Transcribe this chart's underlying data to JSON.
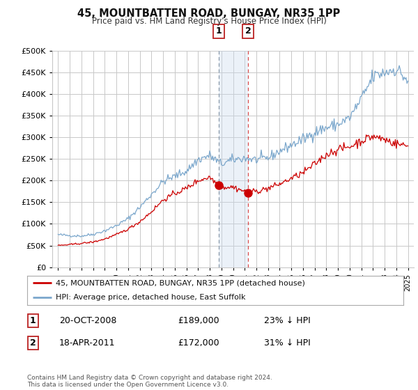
{
  "title": "45, MOUNTBATTEN ROAD, BUNGAY, NR35 1PP",
  "subtitle": "Price paid vs. HM Land Registry's House Price Index (HPI)",
  "legend_line1": "45, MOUNTBATTEN ROAD, BUNGAY, NR35 1PP (detached house)",
  "legend_line2": "HPI: Average price, detached house, East Suffolk",
  "sale1_date": "20-OCT-2008",
  "sale1_price": "£189,000",
  "sale1_hpi": "23% ↓ HPI",
  "sale2_date": "18-APR-2011",
  "sale2_price": "£172,000",
  "sale2_hpi": "31% ↓ HPI",
  "footer": "Contains HM Land Registry data © Crown copyright and database right 2024.\nThis data is licensed under the Open Government Licence v3.0.",
  "sale1_year": 2008.79,
  "sale2_year": 2011.29,
  "sale1_value": 189000,
  "sale2_value": 172000,
  "red_color": "#cc0000",
  "blue_color": "#7ba7cc",
  "shade_color": "#c8d8ec",
  "background_color": "#ffffff",
  "grid_color": "#c8c8c8",
  "ylim": [
    0,
    500000
  ],
  "xlim_start": 1994.5,
  "xlim_end": 2025.5,
  "hpi_annual": [
    1995,
    1996,
    1997,
    1998,
    1999,
    2000,
    2001,
    2002,
    2003,
    2004,
    2005,
    2006,
    2007,
    2008,
    2009,
    2010,
    2011,
    2012,
    2013,
    2014,
    2015,
    2016,
    2017,
    2018,
    2019,
    2020,
    2021,
    2022,
    2023,
    2024,
    2025
  ],
  "hpi_values": [
    75000,
    73000,
    72000,
    76000,
    84000,
    96000,
    112000,
    138000,
    168000,
    198000,
    210000,
    222000,
    248000,
    258000,
    238000,
    248000,
    252000,
    248000,
    252000,
    268000,
    282000,
    295000,
    312000,
    322000,
    330000,
    345000,
    388000,
    440000,
    450000,
    458000,
    430000
  ],
  "red_annual": [
    1995,
    1996,
    1997,
    1998,
    1999,
    2000,
    2001,
    2002,
    2003,
    2004,
    2005,
    2006,
    2007,
    2008,
    2009,
    2010,
    2011,
    2012,
    2013,
    2014,
    2015,
    2016,
    2017,
    2018,
    2019,
    2020,
    2021,
    2022,
    2023,
    2024,
    2025
  ],
  "red_values": [
    50000,
    52000,
    55000,
    58000,
    65000,
    75000,
    88000,
    105000,
    128000,
    155000,
    170000,
    182000,
    200000,
    208000,
    185000,
    185000,
    175000,
    175000,
    182000,
    192000,
    205000,
    218000,
    238000,
    260000,
    272000,
    278000,
    292000,
    302000,
    295000,
    285000,
    280000
  ]
}
